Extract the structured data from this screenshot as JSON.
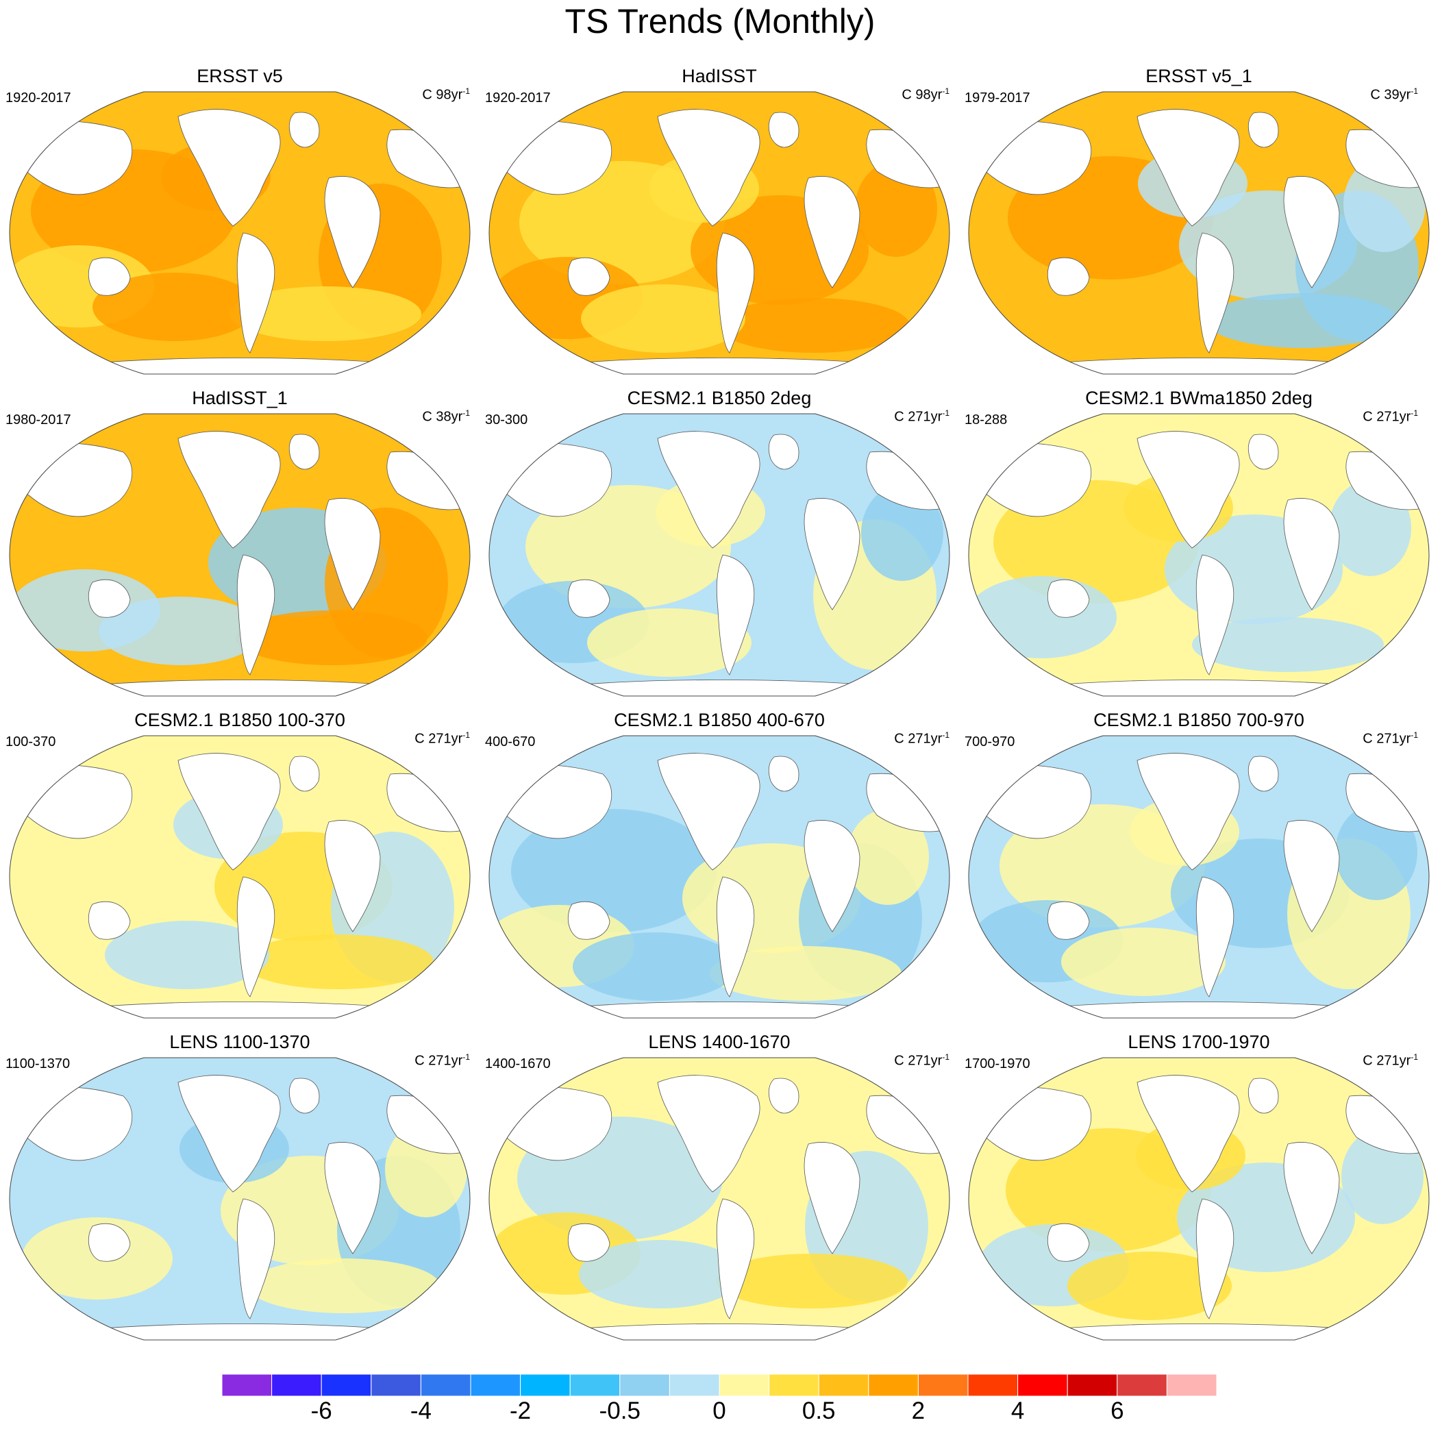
{
  "title": "TS Trends (Monthly)",
  "panels": [
    {
      "title": "ERSST v5",
      "range": "1920-2017",
      "units": "C 98yr",
      "units_exp": "-1",
      "scheme": "warm"
    },
    {
      "title": "HadISST",
      "range": "1920-2017",
      "units": "C 98yr",
      "units_exp": "-1",
      "scheme": "warm"
    },
    {
      "title": "ERSST v5_1",
      "range": "1979-2017",
      "units": "C 39yr",
      "units_exp": "-1",
      "scheme": "mixed_warm"
    },
    {
      "title": "HadISST_1",
      "range": "1980-2017",
      "units": "C 38yr",
      "units_exp": "-1",
      "scheme": "mixed_warm"
    },
    {
      "title": "CESM2.1 B1850 2deg",
      "range": "30-300",
      "units": "C 271yr",
      "units_exp": "-1",
      "scheme": "neutral"
    },
    {
      "title": "CESM2.1 BWma1850 2deg",
      "range": "18-288",
      "units": "C 271yr",
      "units_exp": "-1",
      "scheme": "neutral_warm"
    },
    {
      "title": "CESM2.1 B1850 100-370",
      "range": "100-370",
      "units": "C 271yr",
      "units_exp": "-1",
      "scheme": "neutral_warm"
    },
    {
      "title": "CESM2.1 B1850 400-670",
      "range": "400-670",
      "units": "C 271yr",
      "units_exp": "-1",
      "scheme": "neutral"
    },
    {
      "title": "CESM2.1 B1850 700-970",
      "range": "700-970",
      "units": "C 271yr",
      "units_exp": "-1",
      "scheme": "neutral_cool"
    },
    {
      "title": "LENS 1100-1370",
      "range": "1100-1370",
      "units": "C 271yr",
      "units_exp": "-1",
      "scheme": "neutral_cool"
    },
    {
      "title": "LENS 1400-1670",
      "range": "1400-1670",
      "units": "C 271yr",
      "units_exp": "-1",
      "scheme": "neutral_warm"
    },
    {
      "title": "LENS 1700-1970",
      "range": "1700-1970",
      "units": "C 271yr",
      "units_exp": "-1",
      "scheme": "neutral_warm"
    }
  ],
  "colorbar": {
    "colors": [
      "#8a2be2",
      "#3a1cff",
      "#1a32ff",
      "#3c5ae0",
      "#2f78f0",
      "#1e96ff",
      "#00b4ff",
      "#40c4f8",
      "#90d0f0",
      "#b8e2f6",
      "#fff8a0",
      "#ffe040",
      "#ffbe18",
      "#ffa000",
      "#ff7818",
      "#ff3c00",
      "#ff0000",
      "#d20000",
      "#dc3c3c",
      "#ffb4b4"
    ],
    "labels": [
      "-6",
      "-4",
      "-2",
      "-0.5",
      "0",
      "0.5",
      "2",
      "4",
      "6"
    ]
  }
}
